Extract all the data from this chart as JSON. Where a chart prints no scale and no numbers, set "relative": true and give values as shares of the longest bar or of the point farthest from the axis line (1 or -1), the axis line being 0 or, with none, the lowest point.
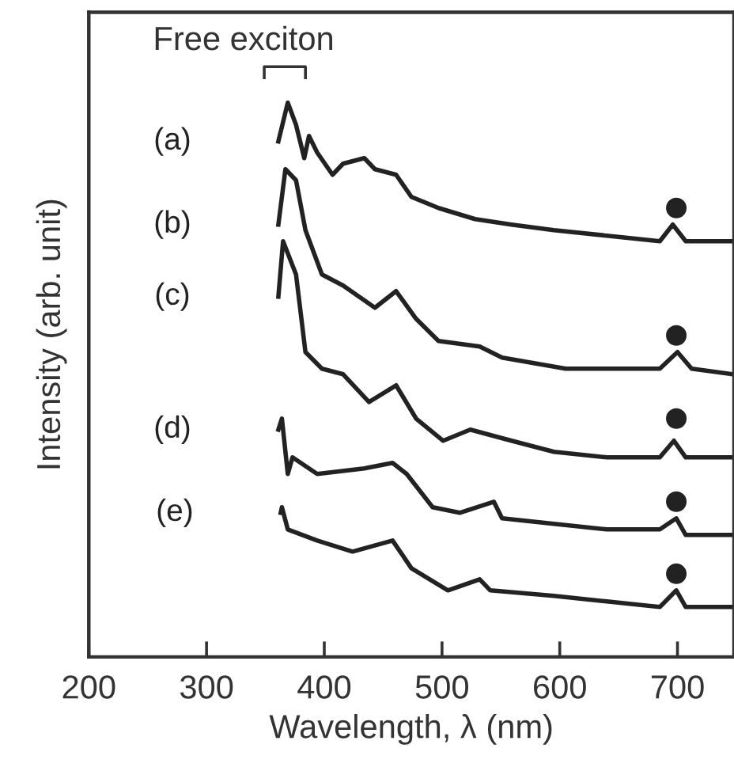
{
  "chart_data": {
    "type": "line",
    "relative": true,
    "xlabel": "Wavelength, λ (nm)",
    "ylabel": "Intensity (arb. unit)",
    "xlim": [
      200,
      748
    ],
    "xticks": [
      200,
      300,
      400,
      500,
      600,
      700
    ],
    "grid": false,
    "legend": false,
    "marker": "none",
    "line_style": "solid",
    "annotations": [
      "Free exciton"
    ],
    "series": [
      {
        "name": "(a)",
        "color": "#222222",
        "x": [
          361,
          369,
          376,
          383,
          387,
          394,
          407,
          416,
          434,
          443,
          461,
          474,
          497,
          528,
          559,
          595,
          640,
          685,
          696,
          707,
          747
        ],
        "values": [
          0.93,
          1.0,
          0.96,
          0.9,
          0.94,
          0.91,
          0.87,
          0.89,
          0.9,
          0.88,
          0.87,
          0.83,
          0.81,
          0.79,
          0.78,
          0.77,
          0.76,
          0.75,
          0.78,
          0.75,
          0.75
        ]
      },
      {
        "name": "(b)",
        "color": "#222222",
        "x": [
          361,
          367,
          376,
          384,
          398,
          416,
          443,
          461,
          478,
          497,
          532,
          551,
          605,
          685,
          700,
          712,
          747
        ],
        "values": [
          0.78,
          0.88,
          0.86,
          0.77,
          0.69,
          0.67,
          0.63,
          0.66,
          0.61,
          0.57,
          0.56,
          0.54,
          0.52,
          0.52,
          0.55,
          0.52,
          0.51
        ]
      },
      {
        "name": "(c)",
        "color": "#222222",
        "x": [
          361,
          365,
          376,
          384,
          398,
          416,
          438,
          461,
          478,
          501,
          524,
          559,
          595,
          640,
          685,
          697,
          707,
          747
        ],
        "values": [
          0.65,
          0.75,
          0.69,
          0.55,
          0.52,
          0.51,
          0.46,
          0.49,
          0.43,
          0.39,
          0.41,
          0.39,
          0.37,
          0.36,
          0.36,
          0.39,
          0.36,
          0.36
        ]
      },
      {
        "name": "(d)",
        "color": "#222222",
        "x": [
          361,
          364,
          369,
          373,
          394,
          434,
          458,
          470,
          492,
          515,
          544,
          551,
          595,
          640,
          685,
          699,
          707,
          747
        ],
        "values": [
          0.41,
          0.43,
          0.33,
          0.36,
          0.33,
          0.34,
          0.35,
          0.33,
          0.27,
          0.26,
          0.28,
          0.25,
          0.24,
          0.23,
          0.23,
          0.25,
          0.22,
          0.22
        ]
      },
      {
        "name": "(e)",
        "color": "#222222",
        "x": [
          363,
          364,
          369,
          394,
          424,
          458,
          474,
          505,
          532,
          541,
          595,
          640,
          685,
          699,
          707,
          747
        ],
        "values": [
          0.26,
          0.27,
          0.23,
          0.21,
          0.19,
          0.21,
          0.16,
          0.12,
          0.14,
          0.12,
          0.11,
          0.1,
          0.09,
          0.12,
          0.09,
          0.09
        ]
      },
      {
        "type": "scatter",
        "marker": "circle",
        "color": "#222222",
        "x": [
          699,
          699,
          699,
          699,
          699
        ],
        "values": [
          0.81,
          0.58,
          0.43,
          0.28,
          0.15
        ]
      }
    ]
  }
}
